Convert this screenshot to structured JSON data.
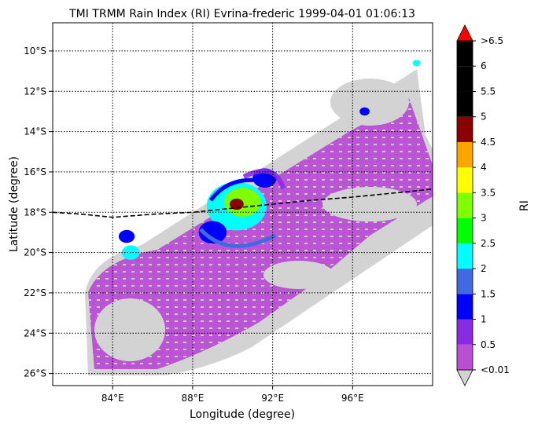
{
  "chart_data": {
    "type": "heatmap",
    "title": "TMI TRMM Rain Index (RI) Evrina-frederic 1999-04-01 01:06:13",
    "xlabel": "Longitude (degree)",
    "ylabel": "Latitude (degree)",
    "xlim": [
      81,
      100
    ],
    "ylim": [
      -26.6,
      -8.6
    ],
    "x_ticks": [
      {
        "value": 84,
        "label": "84°E"
      },
      {
        "value": 88,
        "label": "88°E"
      },
      {
        "value": 92,
        "label": "92°E"
      },
      {
        "value": 96,
        "label": "96°E"
      }
    ],
    "y_ticks": [
      {
        "value": -10,
        "label": "10°S"
      },
      {
        "value": -12,
        "label": "12°S"
      },
      {
        "value": -14,
        "label": "14°S"
      },
      {
        "value": -16,
        "label": "16°S"
      },
      {
        "value": -18,
        "label": "18°S"
      },
      {
        "value": -20,
        "label": "20°S"
      },
      {
        "value": -22,
        "label": "22°S"
      },
      {
        "value": -24,
        "label": "24°S"
      },
      {
        "value": -26,
        "label": "26°S"
      }
    ],
    "grid": true,
    "colorbar": {
      "label": "RI",
      "levels": [
        {
          "label": "<0.01",
          "color": "#b84fd4"
        },
        {
          "label": "0.5",
          "color": "#8a2be2"
        },
        {
          "label": "1",
          "color": "#0000ff"
        },
        {
          "label": "1.5",
          "color": "#4169e1"
        },
        {
          "label": "2",
          "color": "#00ffff"
        },
        {
          "label": "2.5",
          "color": "#00ff00"
        },
        {
          "label": "3",
          "color": "#7fff00"
        },
        {
          "label": "3.5",
          "color": "#ffff00"
        },
        {
          "label": "4",
          "color": "#ffa500"
        },
        {
          "label": "4.5",
          "color": "#8b0000"
        },
        {
          "label": "5",
          "color": "#000000"
        },
        {
          "label": "5.5",
          "color": "#000000"
        },
        {
          "label": "6",
          "color": "#000000"
        },
        {
          "label": ">6.5",
          "color": "#ff0000"
        }
      ],
      "under_color": "#d3d3d3",
      "over_color": "#ff0000"
    },
    "swath_no_rain_color": "#d3d3d3",
    "storm_center": {
      "lon": 90.3,
      "lat": -17.6
    },
    "track": [
      [
        81.0,
        -18.0
      ],
      [
        82.5,
        -18.1
      ],
      [
        84.0,
        -18.25
      ],
      [
        86.0,
        -18.1
      ],
      [
        88.0,
        -18.0
      ],
      [
        90.0,
        -17.8
      ],
      [
        92.0,
        -17.6
      ],
      [
        94.0,
        -17.4
      ],
      [
        96.0,
        -17.25
      ],
      [
        98.0,
        -17.05
      ],
      [
        100.0,
        -16.85
      ]
    ],
    "rain_blobs": [
      {
        "lon": 90.2,
        "lat": -17.7,
        "r": 1.5,
        "ri": 2.3
      },
      {
        "lon": 90.5,
        "lat": -17.5,
        "r": 0.9,
        "ri": 3.2
      },
      {
        "lon": 90.2,
        "lat": -17.6,
        "r": 0.35,
        "ri": 4.8
      },
      {
        "lon": 91.6,
        "lat": -16.3,
        "r": 0.6,
        "ri": 1.2
      },
      {
        "lon": 89.0,
        "lat": -19.0,
        "r": 0.7,
        "ri": 1.0
      },
      {
        "lon": 84.9,
        "lat": -20.0,
        "r": 0.45,
        "ri": 2.1
      },
      {
        "lon": 84.7,
        "lat": -19.2,
        "r": 0.4,
        "ri": 1.1
      },
      {
        "lon": 96.6,
        "lat": -13.0,
        "r": 0.25,
        "ri": 1.0
      },
      {
        "lon": 99.2,
        "lat": -10.6,
        "r": 0.2,
        "ri": 2.2
      }
    ]
  }
}
